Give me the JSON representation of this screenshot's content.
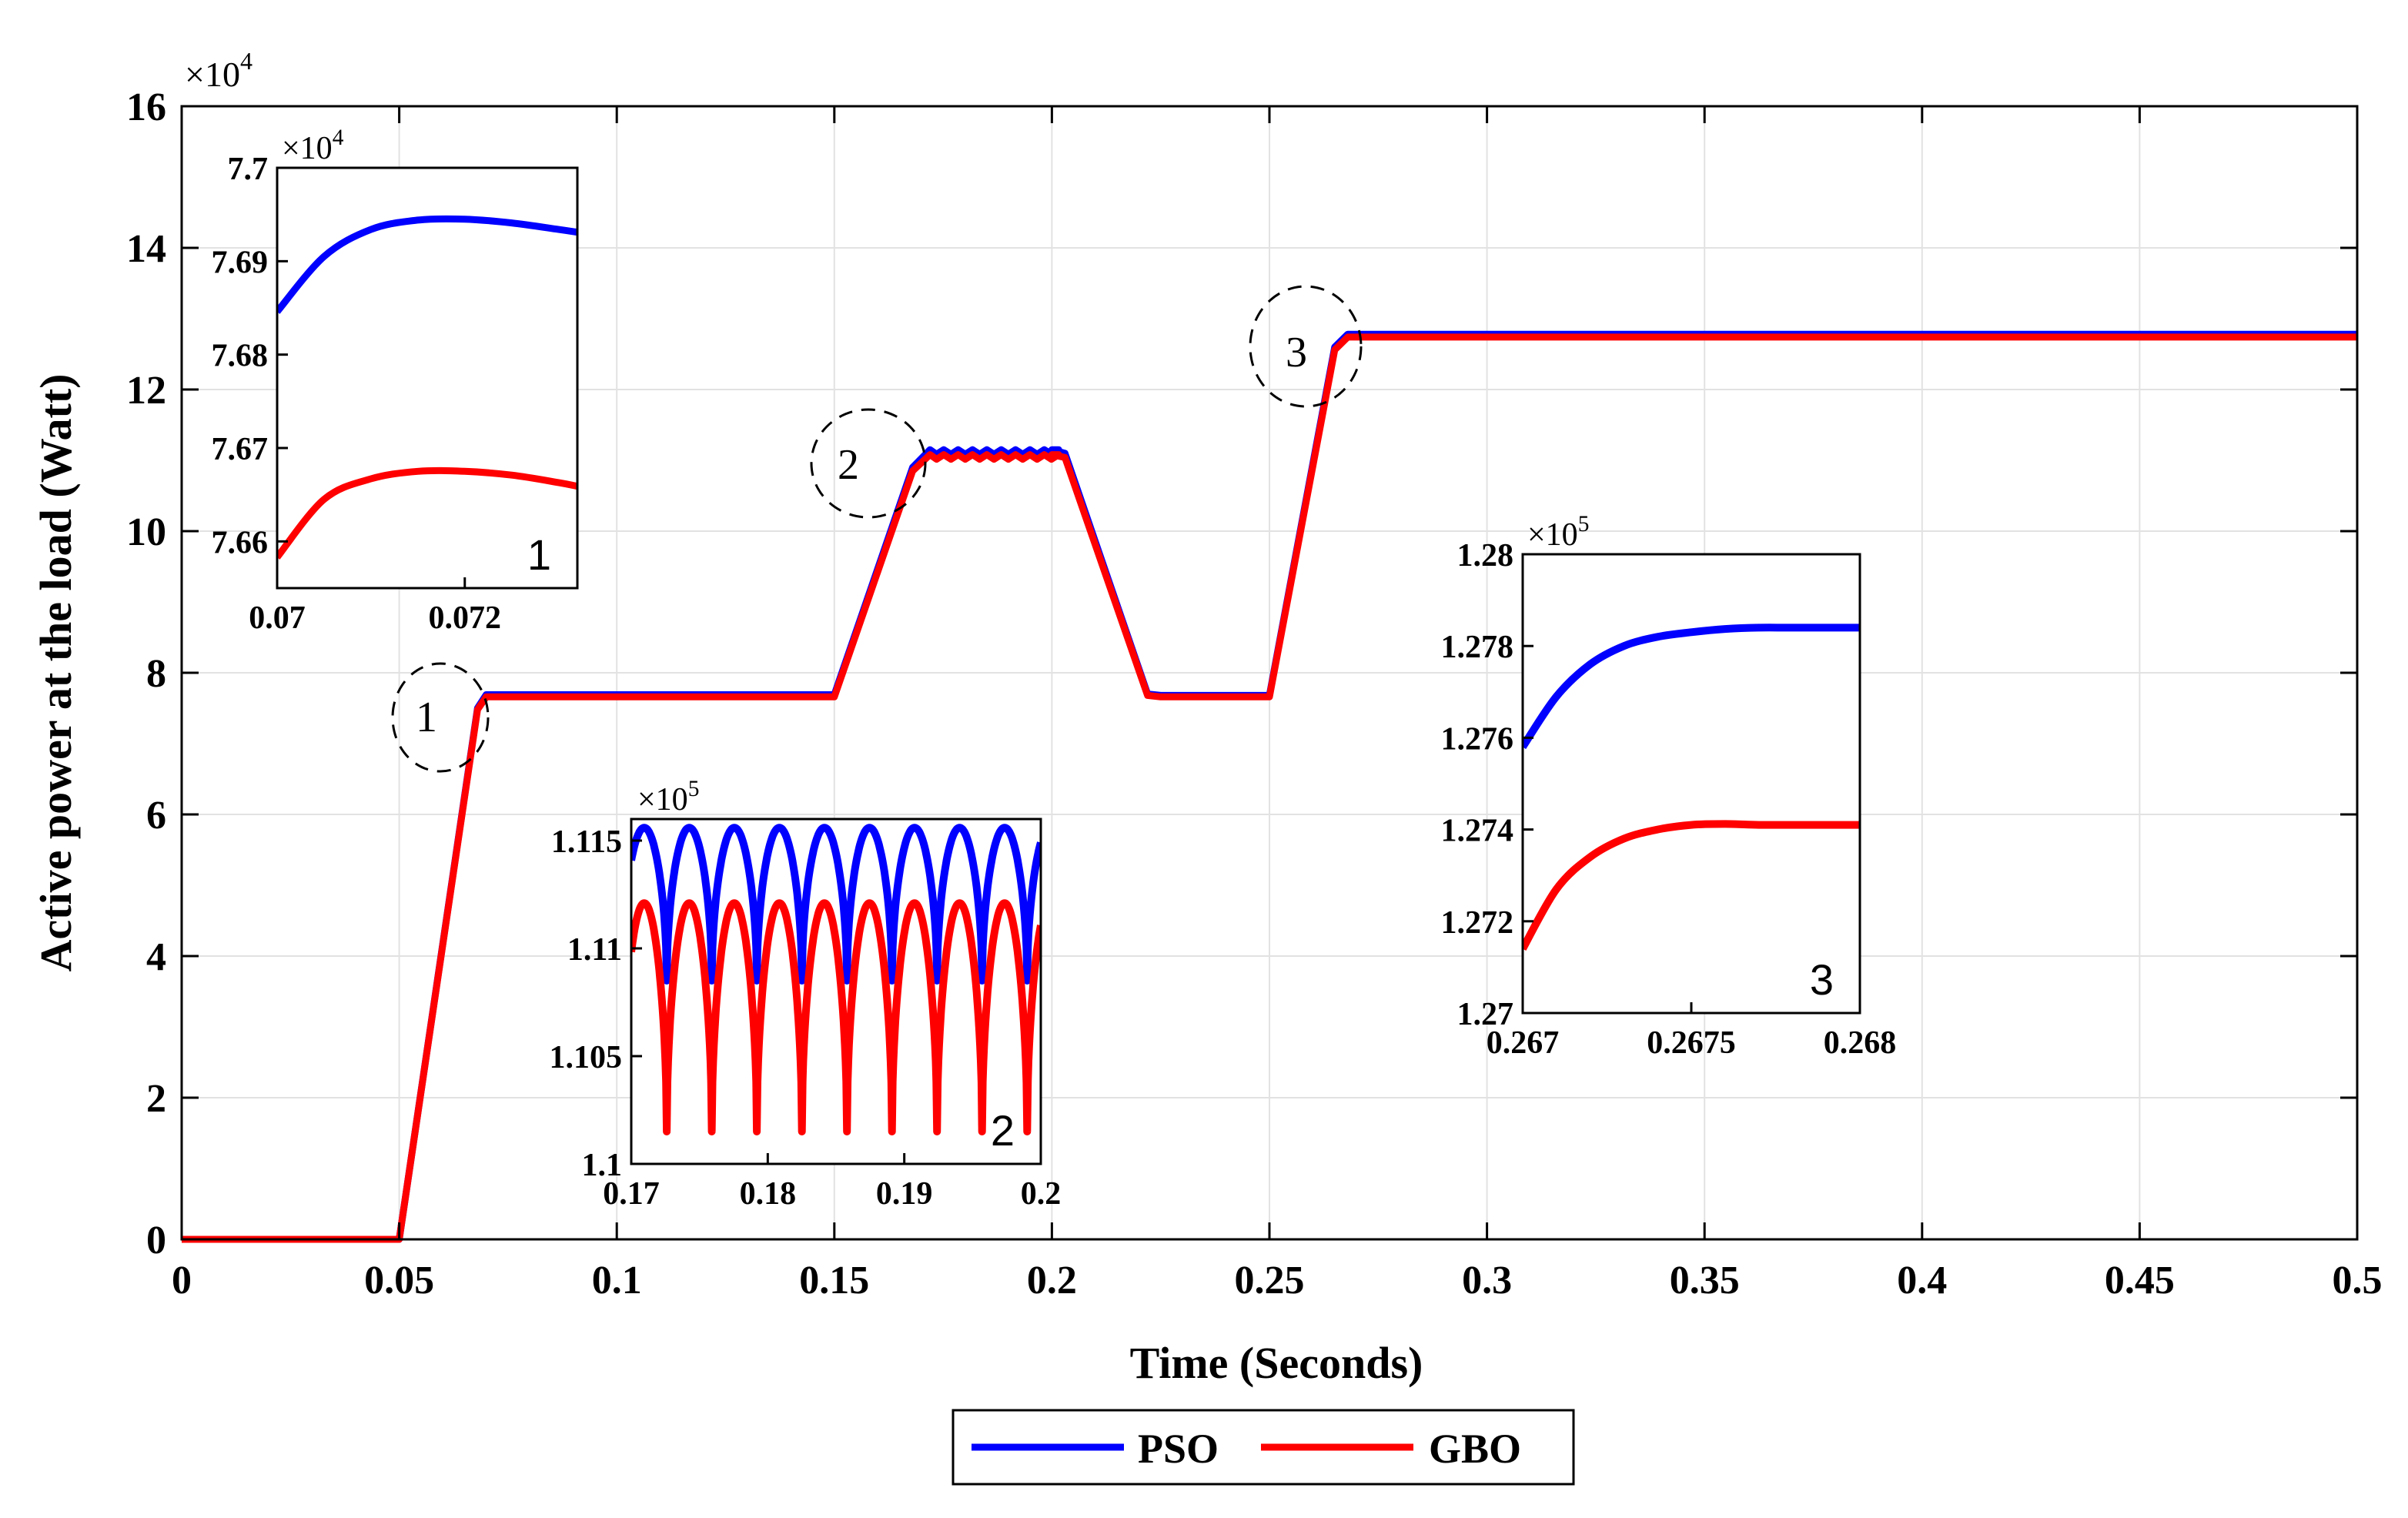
{
  "chart_data": [
    {
      "type": "line",
      "xlabel": "Time (Seconds)",
      "ylabel": "Active power at the load (Watt)",
      "multiplier": "×10",
      "exponent": "4",
      "xlim": [
        0,
        0.5
      ],
      "ylim": [
        0,
        16
      ],
      "xticks": [
        0,
        0.05,
        0.1,
        0.15,
        0.2,
        0.25,
        0.3,
        0.35,
        0.4,
        0.45,
        0.5
      ],
      "xtick_labels": [
        "0",
        "0.05",
        "0.1",
        "0.15",
        "0.2",
        "0.25",
        "0.3",
        "0.35",
        "0.4",
        "0.45",
        "0.5"
      ],
      "yticks": [
        0,
        2,
        4,
        6,
        8,
        10,
        12,
        14,
        16
      ],
      "ytick_labels": [
        "0",
        "2",
        "4",
        "6",
        "8",
        "10",
        "12",
        "14",
        "16"
      ],
      "grid": true,
      "legend_position": "bottom-center",
      "colors": {
        "PSO": "#0000ff",
        "GBO": "#ff0000"
      },
      "series": [
        {
          "name": "PSO",
          "x": [
            0,
            0.05,
            0.068,
            0.07,
            0.15,
            0.168,
            0.172,
            0.2,
            0.203,
            0.222,
            0.225,
            0.25,
            0.265,
            0.268,
            0.5
          ],
          "y": [
            0,
            0,
            7.5,
            7.69,
            7.69,
            10.9,
            11.15,
            11.15,
            11.1,
            7.7,
            7.68,
            7.68,
            12.6,
            12.78,
            12.78
          ]
        },
        {
          "name": "GBO",
          "x": [
            0,
            0.05,
            0.068,
            0.07,
            0.15,
            0.168,
            0.172,
            0.2,
            0.203,
            0.222,
            0.225,
            0.25,
            0.265,
            0.268,
            0.5
          ],
          "y": [
            0,
            0,
            7.48,
            7.66,
            7.66,
            10.85,
            11.08,
            11.08,
            11.04,
            7.68,
            7.66,
            7.66,
            12.56,
            12.74,
            12.74
          ]
        }
      ],
      "annotations": [
        "1",
        "2",
        "3"
      ]
    },
    {
      "type": "line",
      "inset": "1",
      "label": "1",
      "multiplier": "×10",
      "exponent": "4",
      "xlim": [
        0.07,
        0.0732
      ],
      "ylim": [
        7.655,
        7.7
      ],
      "xticks": [
        0.07,
        0.072
      ],
      "xtick_labels": [
        "0.07",
        "0.072"
      ],
      "yticks": [
        7.66,
        7.67,
        7.68,
        7.69,
        7.7
      ],
      "ytick_labels": [
        "7.66",
        "7.67",
        "7.68",
        "7.69",
        "7.7"
      ],
      "series": [
        {
          "name": "PSO",
          "x": [
            0.07,
            0.0705,
            0.071,
            0.0715,
            0.072,
            0.0725,
            0.073,
            0.0732
          ],
          "y": [
            7.6846,
            7.6905,
            7.6934,
            7.6944,
            7.6945,
            7.6941,
            7.6934,
            7.6931
          ]
        },
        {
          "name": "GBO",
          "x": [
            0.07,
            0.0705,
            0.071,
            0.0715,
            0.072,
            0.0725,
            0.073,
            0.0732
          ],
          "y": [
            7.6583,
            7.6645,
            7.6667,
            7.6675,
            7.6675,
            7.6671,
            7.6663,
            7.6659
          ]
        }
      ]
    },
    {
      "type": "line",
      "inset": "2",
      "label": "2",
      "multiplier": "×10",
      "exponent": "5",
      "xlim": [
        0.17,
        0.2
      ],
      "ylim": [
        1.1,
        1.116
      ],
      "xticks": [
        0.17,
        0.18,
        0.19,
        0.2
      ],
      "xtick_labels": [
        "0.17",
        "0.18",
        "0.19",
        "0.2"
      ],
      "yticks": [
        1.1,
        1.105,
        1.11,
        1.115
      ],
      "ytick_labels": [
        "1.1",
        "1.105",
        "1.11",
        "1.115"
      ],
      "series": [
        {
          "name": "PSO",
          "period": 0.0033,
          "phase": 0.0007,
          "min": 1.1085,
          "max": 1.1156,
          "start": 1.1128
        },
        {
          "name": "GBO",
          "period": 0.0033,
          "phase": 0.0007,
          "min": 1.1015,
          "max": 1.1121,
          "start": 1.1089
        }
      ]
    },
    {
      "type": "line",
      "inset": "3",
      "label": "3",
      "multiplier": "×10",
      "exponent": "5",
      "xlim": [
        0.267,
        0.268
      ],
      "ylim": [
        1.27,
        1.28
      ],
      "xticks": [
        0.267,
        0.2675,
        0.268
      ],
      "xtick_labels": [
        "0.267",
        "0.2675",
        "0.268"
      ],
      "yticks": [
        1.27,
        1.272,
        1.274,
        1.276,
        1.278,
        1.28
      ],
      "ytick_labels": [
        "1.27",
        "1.272",
        "1.274",
        "1.276",
        "1.278",
        "1.28"
      ],
      "series": [
        {
          "name": "PSO",
          "x": [
            0.267,
            0.2671,
            0.2672,
            0.2673,
            0.2674,
            0.2675,
            0.2676,
            0.2677,
            0.2678,
            0.268
          ],
          "y": [
            1.2758,
            1.2769,
            1.2776,
            1.278,
            1.2782,
            1.2783,
            1.27837,
            1.2784,
            1.2784,
            1.2784
          ]
        },
        {
          "name": "GBO",
          "x": [
            0.267,
            0.2671,
            0.2672,
            0.2673,
            0.2674,
            0.2675,
            0.2676,
            0.2677,
            0.2678,
            0.268
          ],
          "y": [
            1.2714,
            1.2727,
            1.2734,
            1.2738,
            1.274,
            1.2741,
            1.27412,
            1.2741,
            1.2741,
            1.2741
          ]
        }
      ]
    }
  ]
}
